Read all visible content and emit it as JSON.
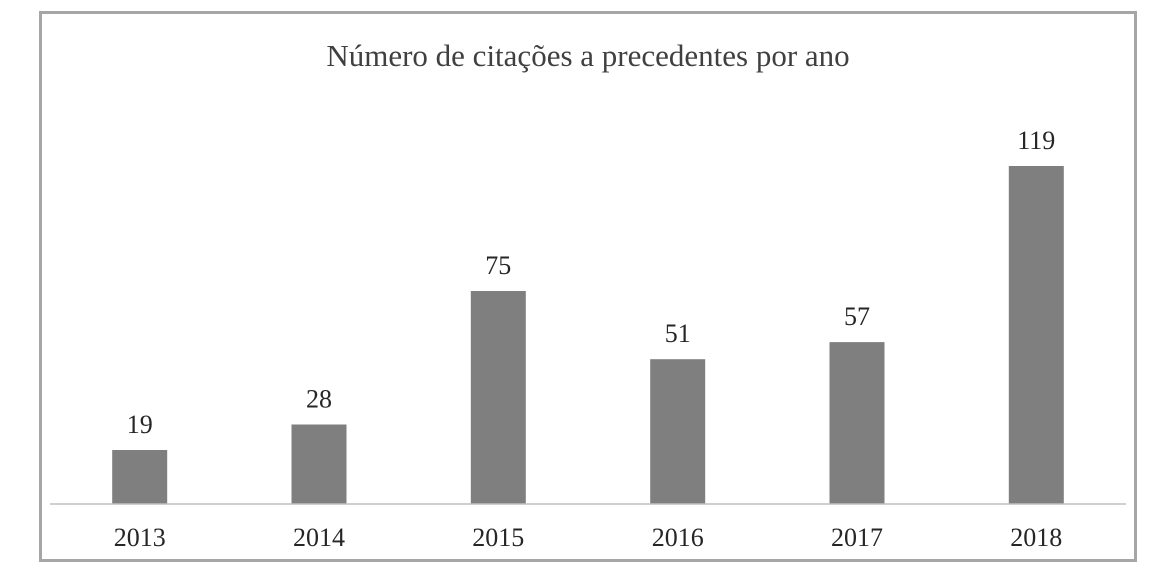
{
  "chart_data": {
    "type": "bar",
    "title": "Número de citações a precedentes por ano",
    "categories": [
      "2013",
      "2014",
      "2015",
      "2016",
      "2017",
      "2018"
    ],
    "values": [
      19,
      28,
      75,
      51,
      57,
      119
    ],
    "xlabel": "",
    "ylabel": "",
    "ylim": [
      0,
      125
    ],
    "grid": false,
    "legend": "none",
    "data_labels": true,
    "bar_color": "#7f7f7f",
    "axis_color": "#bfbfbf",
    "border_color": "#a6a6a6"
  }
}
